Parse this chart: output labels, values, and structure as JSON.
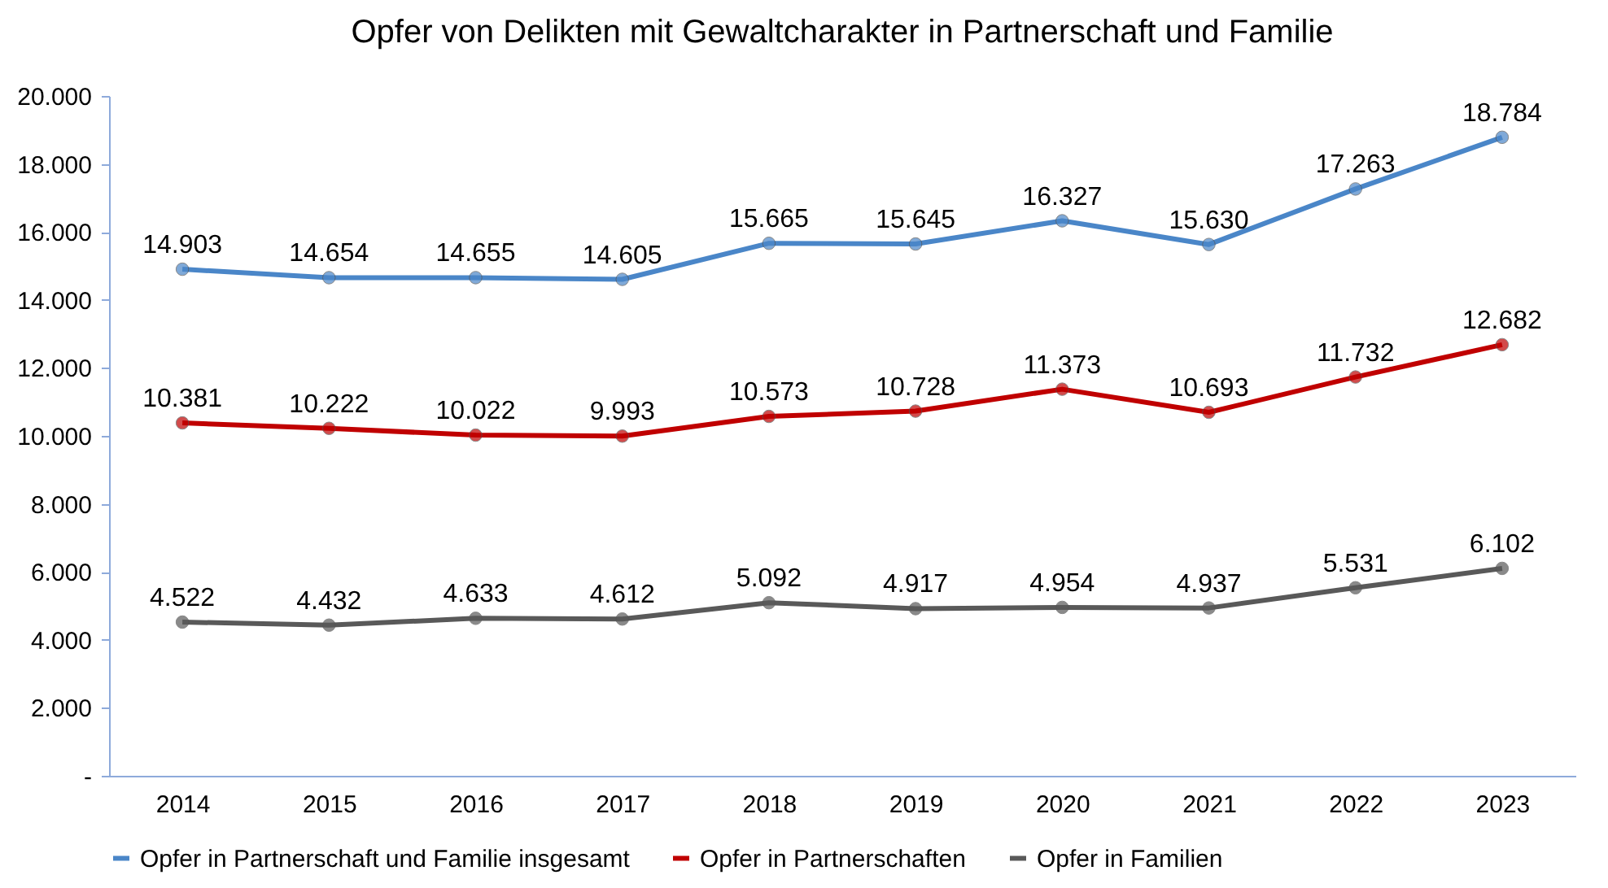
{
  "chart_data": {
    "type": "line",
    "title": "Opfer von Delikten mit Gewaltcharakter in Partnerschaft und Familie",
    "categories": [
      "2014",
      "2015",
      "2016",
      "2017",
      "2018",
      "2019",
      "2020",
      "2021",
      "2022",
      "2023"
    ],
    "series": [
      {
        "name": "Opfer in Partnerschaft und Familie insgesamt",
        "color": "#4a86c8",
        "values": [
          14903,
          14654,
          14655,
          14605,
          15665,
          15645,
          16327,
          15630,
          17263,
          18784
        ],
        "value_labels": [
          "14.903",
          "14.654",
          "14.655",
          "14.605",
          "15.665",
          "15.645",
          "16.327",
          "15.630",
          "17.263",
          "18.784"
        ]
      },
      {
        "name": "Opfer in Partnerschaften",
        "color": "#c00000",
        "values": [
          10381,
          10222,
          10022,
          9993,
          10573,
          10728,
          11373,
          10693,
          11732,
          12682
        ],
        "value_labels": [
          "10.381",
          "10.222",
          "10.022",
          "9.993",
          "10.573",
          "10.728",
          "11.373",
          "10.693",
          "11.732",
          "12.682"
        ]
      },
      {
        "name": "Opfer in Familien",
        "color": "#595959",
        "values": [
          4522,
          4432,
          4633,
          4612,
          5092,
          4917,
          4954,
          4937,
          5531,
          6102
        ],
        "value_labels": [
          "4.522",
          "4.432",
          "4.633",
          "4.612",
          "5.092",
          "4.917",
          "4.954",
          "4.937",
          "5.531",
          "6.102"
        ]
      }
    ],
    "ylim": [
      0,
      20000
    ],
    "yticks": [
      {
        "value": 0,
        "label": "-"
      },
      {
        "value": 2000,
        "label": "2.000"
      },
      {
        "value": 4000,
        "label": "4.000"
      },
      {
        "value": 6000,
        "label": "6.000"
      },
      {
        "value": 8000,
        "label": "8.000"
      },
      {
        "value": 10000,
        "label": "10.000"
      },
      {
        "value": 12000,
        "label": "12.000"
      },
      {
        "value": 14000,
        "label": "14.000"
      },
      {
        "value": 16000,
        "label": "16.000"
      },
      {
        "value": 18000,
        "label": "18.000"
      },
      {
        "value": 20000,
        "label": "20.000"
      }
    ],
    "grid": false,
    "legend": "bottom",
    "marker": "circle",
    "line_style": "solid"
  }
}
